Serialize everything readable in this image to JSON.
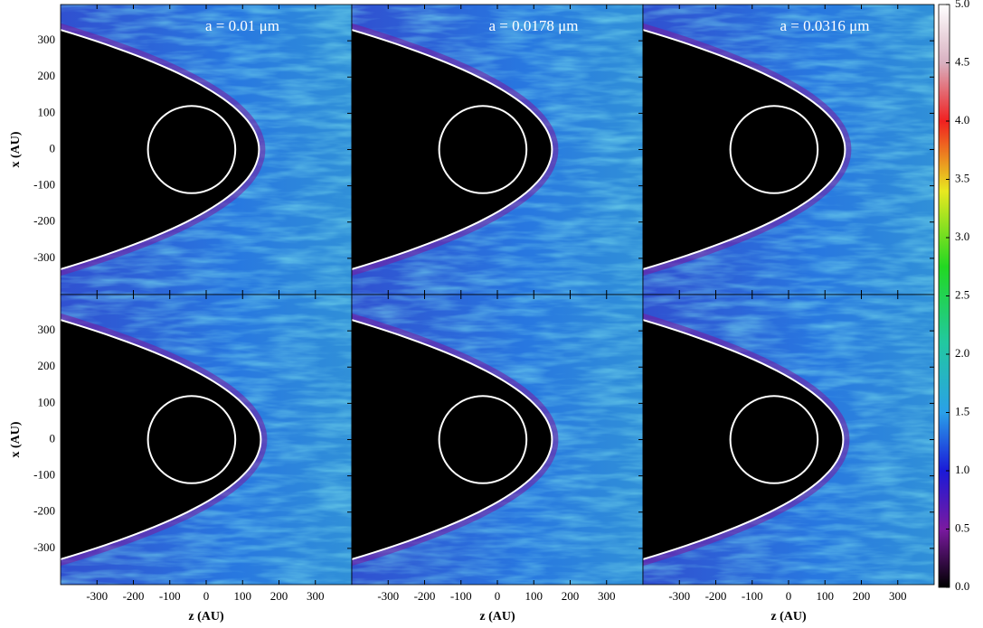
{
  "chart_data": {
    "type": "heatmap-grid",
    "titles": [
      "a = 0.01 μm",
      "a = 0.0178 μm",
      "a = 0.0316 μm"
    ],
    "xlabel": "z (AU)",
    "ylabel": "x (AU)",
    "xlim": [
      -400,
      400
    ],
    "xticks": [
      -300,
      -200,
      -100,
      0,
      100,
      200,
      300
    ],
    "ylim": [
      -400,
      400
    ],
    "yticks": [
      -300,
      -200,
      -100,
      0,
      100,
      200,
      300
    ],
    "colorbar": {
      "lim": [
        0,
        5
      ],
      "ticks": [
        {
          "value": 0,
          "label": "0.0"
        },
        {
          "value": 0.5,
          "label": "0.5"
        },
        {
          "value": 1,
          "label": "1.0"
        },
        {
          "value": 1.5,
          "label": "1.5"
        },
        {
          "value": 2,
          "label": "2.0"
        },
        {
          "value": 2.5,
          "label": "2.5"
        },
        {
          "value": 3,
          "label": "3.0"
        },
        {
          "value": 3.5,
          "label": "3.5"
        },
        {
          "value": 4,
          "label": "4.0"
        },
        {
          "value": 4.5,
          "label": "4.5"
        },
        {
          "value": 5,
          "label": "5.0"
        }
      ]
    }
  }
}
